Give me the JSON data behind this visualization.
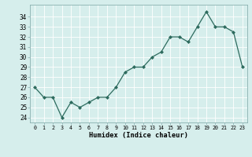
{
  "x_vals": [
    0,
    1,
    2,
    3,
    4,
    5,
    6,
    7,
    8,
    9,
    10,
    11,
    12,
    13,
    14,
    15,
    16,
    17,
    18,
    19,
    20,
    21,
    22,
    23
  ],
  "y_vals": [
    27,
    26,
    26,
    24,
    25.5,
    25,
    25.5,
    26,
    26,
    27,
    28.5,
    29,
    29,
    30,
    30.5,
    32,
    32,
    31.5,
    33,
    34.5,
    33,
    33,
    32.5,
    29
  ],
  "xlabel": "Humidex (Indice chaleur)",
  "xlim": [
    -0.5,
    23.5
  ],
  "ylim": [
    23.5,
    35.2
  ],
  "yticks": [
    24,
    25,
    26,
    27,
    28,
    29,
    30,
    31,
    32,
    33,
    34
  ],
  "line_color": "#2d6b5e",
  "bg_color": "#d6eeec",
  "plot_bg": "#d6eeec",
  "grid_color": "#b8d8d8",
  "spine_color": "#8ab0b0"
}
